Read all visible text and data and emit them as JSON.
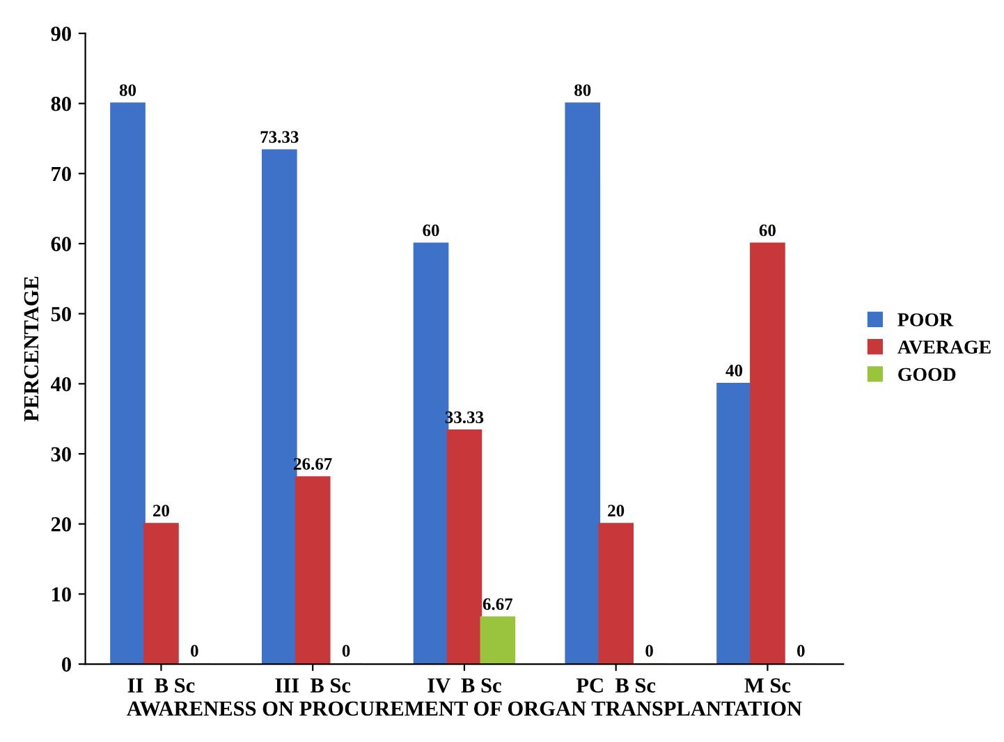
{
  "chart_data": {
    "type": "bar",
    "xlabel": "AWARENESS ON PROCUREMENT OF ORGAN TRANSPLANTATION",
    "ylabel": "PERCENTAGE",
    "categories": [
      "II  B Sc",
      "III  B Sc",
      "IV  B Sc",
      "PC  B Sc",
      "M Sc"
    ],
    "series": [
      {
        "name": "POOR",
        "color": "#3e72c8",
        "values": [
          80,
          73.33,
          60,
          80,
          40
        ]
      },
      {
        "name": "AVERAGE",
        "color": "#c8383a",
        "values": [
          20,
          26.67,
          33.33,
          20,
          60
        ]
      },
      {
        "name": "GOOD",
        "color": "#9bc43e",
        "values": [
          0,
          0,
          6.67,
          0,
          0
        ]
      }
    ],
    "ylim": [
      0,
      90
    ],
    "yticks": [
      0,
      10,
      20,
      30,
      40,
      50,
      60,
      70,
      80,
      90
    ],
    "grid": false,
    "legend": "right",
    "data_labels": true
  }
}
